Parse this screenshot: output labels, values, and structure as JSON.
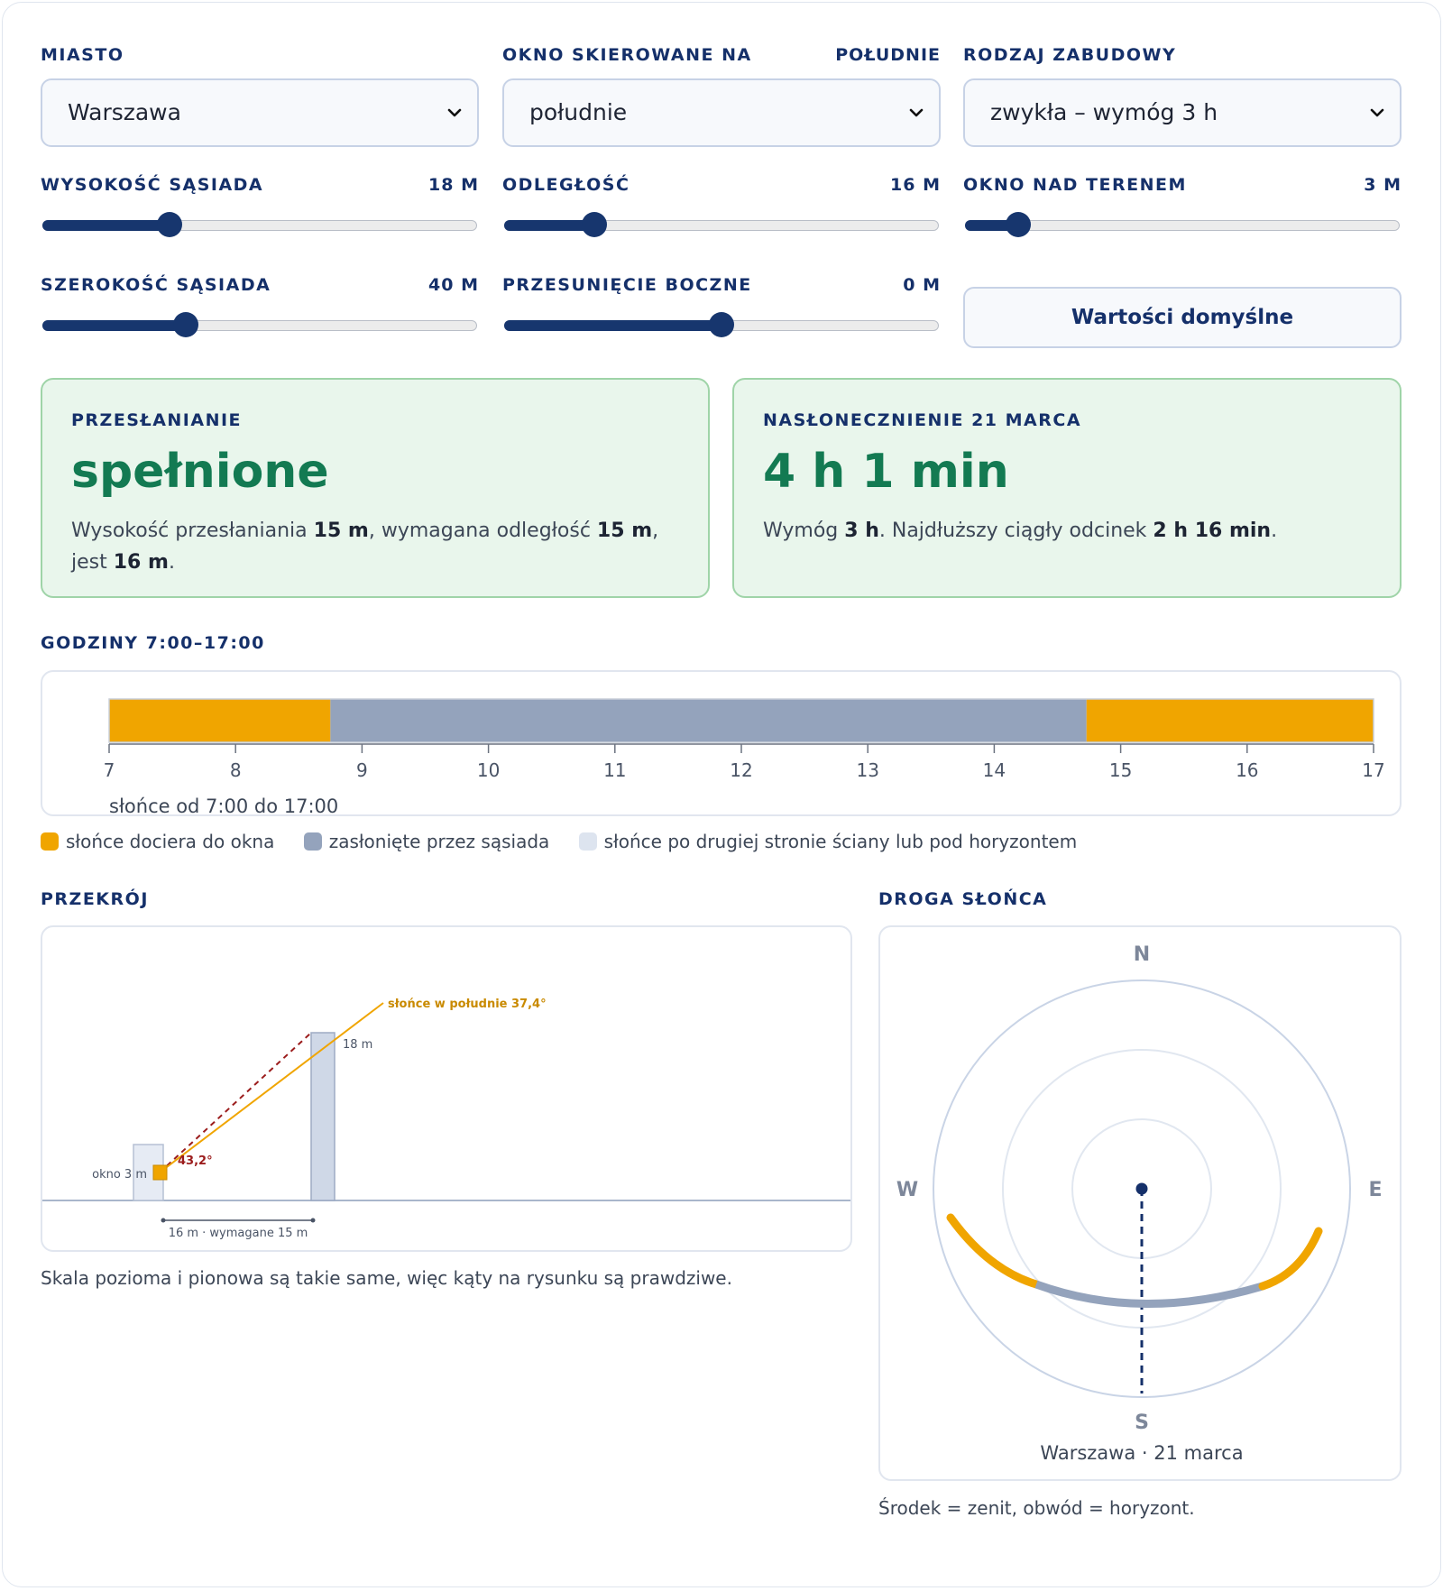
{
  "controls": {
    "city": {
      "label": "MIASTO",
      "value": "Warszawa"
    },
    "window_dir": {
      "label": "OKNO SKIEROWANE NA",
      "value_label": "POŁUDNIE",
      "value": "południe"
    },
    "building_type": {
      "label": "RODZAJ ZABUDOWY",
      "value": "zwykła – wymóg 3 h"
    },
    "neighbor_height": {
      "label": "WYSOKOŚĆ SĄSIADA",
      "value_label": "18 M",
      "fraction": 0.28
    },
    "distance": {
      "label": "ODLEGŁOŚĆ",
      "value_label": "16 M",
      "fraction": 0.19
    },
    "window_height": {
      "label": "OKNO NAD TERENEM",
      "value_label": "3 M",
      "fraction": 0.1
    },
    "neighbor_width": {
      "label": "SZEROKOŚĆ SĄSIADA",
      "value_label": "40 M",
      "fraction": 0.32
    },
    "lateral_offset": {
      "label": "PRZESUNIĘCIE BOCZNE",
      "value_label": "0 M",
      "fraction": 0.5
    },
    "reset_label": "Wartości domyślne"
  },
  "cards": {
    "shading": {
      "label": "PRZESŁANIANIE",
      "result": "spełnione",
      "t1": "Wysokość przesłaniania ",
      "v1": "15 m",
      "t2": ", wymagana odległość ",
      "v2": "15 m",
      "t3": ", jest ",
      "v3": "16 m",
      "t4": "."
    },
    "insolation": {
      "label": "NASŁONECZNIENIE 21 MARCA",
      "result": "4 h 1 min",
      "t1": "Wymóg ",
      "v1": "3 h",
      "t2": ". Najdłuższy ciągły odcinek ",
      "v2": "2 h 16 min",
      "t3": "."
    }
  },
  "timeline": {
    "title": "GODZINY 7:00–17:00",
    "caption": "słońce od 7:00 do 17:00",
    "start_hour": 7,
    "end_hour": 17,
    "segments": [
      {
        "from": 7.0,
        "to": 8.75,
        "state": "sun"
      },
      {
        "from": 8.75,
        "to": 14.73,
        "state": "blocked"
      },
      {
        "from": 14.73,
        "to": 17.0,
        "state": "sun"
      }
    ],
    "ticks": [
      "7",
      "8",
      "9",
      "10",
      "11",
      "12",
      "13",
      "14",
      "15",
      "16",
      "17"
    ]
  },
  "legend": {
    "sun": "słońce dociera do okna",
    "blocked": "zasłonięte przez sąsiada",
    "behind": "słońce po drugiej stronie ściany lub pod horyzontem"
  },
  "colors": {
    "sun": "#f0a500",
    "blocked": "#94a3bc",
    "behind": "#dde4ef",
    "navy": "#15306a",
    "green": "#137a52",
    "red": "#9b1c1c"
  },
  "section": {
    "title": "PRZEKRÓJ",
    "sun_label": "słońce w południe 37,4°",
    "angle_label": "43,2°",
    "height_label": "18 m",
    "window_label": "okno 3 m",
    "distance_label": "16 m · wymagane 15 m",
    "sun_angle_deg": 37.4,
    "neighbor_height_m": 18,
    "window_height_m": 3,
    "distance_m": 16,
    "note": "Skala pozioma i pionowa są takie same, więc kąty na rysunku są prawdziwe."
  },
  "sunpath": {
    "title": "DROGA SŁOŃCA",
    "N": "N",
    "S": "S",
    "E": "E",
    "W": "W",
    "caption": "Warszawa · 21 marca",
    "note": "Środek = zenit, obwód = horyzont."
  }
}
